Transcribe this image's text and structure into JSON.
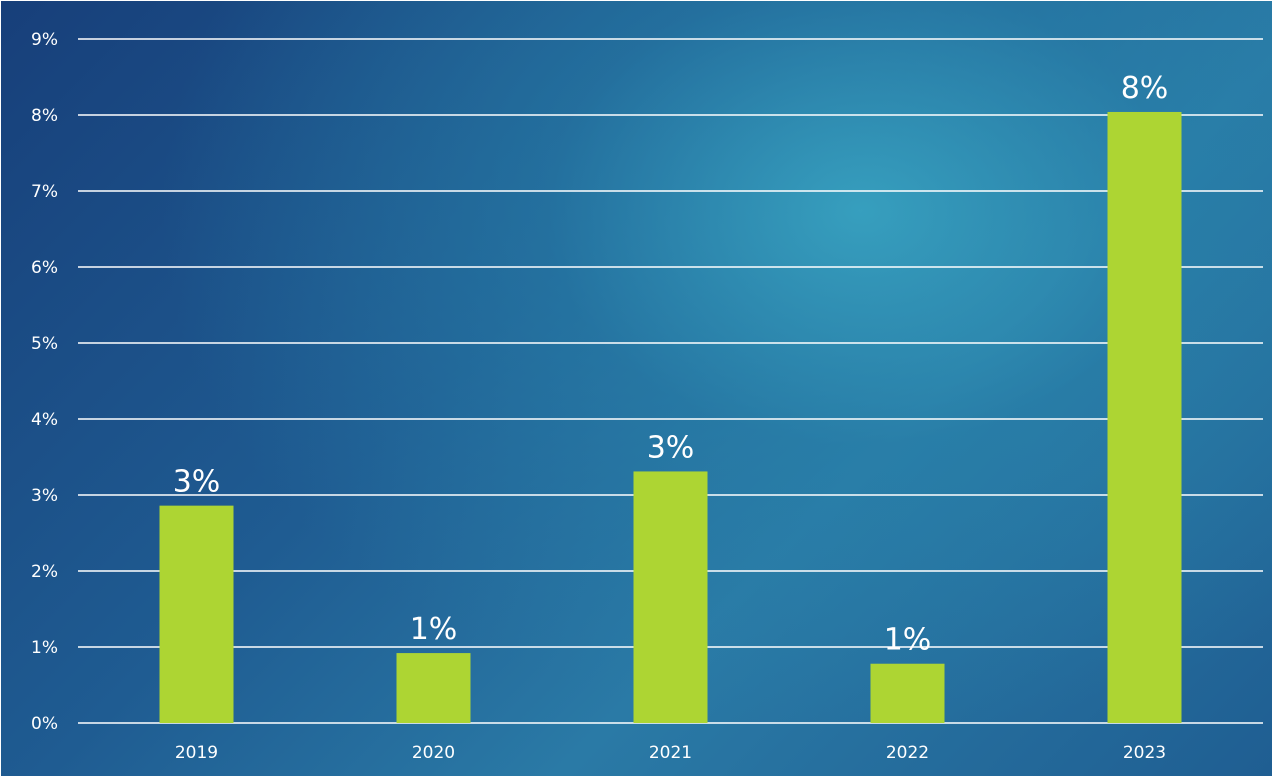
{
  "chart_data": {
    "type": "bar",
    "title": "",
    "xlabel": "",
    "ylabel": "",
    "categories": [
      "2019",
      "2020",
      "2021",
      "2022",
      "2023"
    ],
    "values": [
      2.86,
      0.92,
      3.31,
      0.78,
      8.04
    ],
    "data_labels": [
      "3%",
      "1%",
      "3%",
      "1%",
      "8%"
    ],
    "ylim": [
      0,
      9
    ],
    "y_ticks": [
      0,
      1,
      2,
      3,
      4,
      5,
      6,
      7,
      8,
      9
    ],
    "y_tick_labels": [
      "0%",
      "1%",
      "2%",
      "3%",
      "4%",
      "5%",
      "6%",
      "7%",
      "8%",
      "9%"
    ],
    "grid": true,
    "legend": "none",
    "colors": {
      "bar": "#add533",
      "background_dark": "#173f7a",
      "background_light": "#3aa8c4",
      "text": "#ffffff"
    }
  }
}
